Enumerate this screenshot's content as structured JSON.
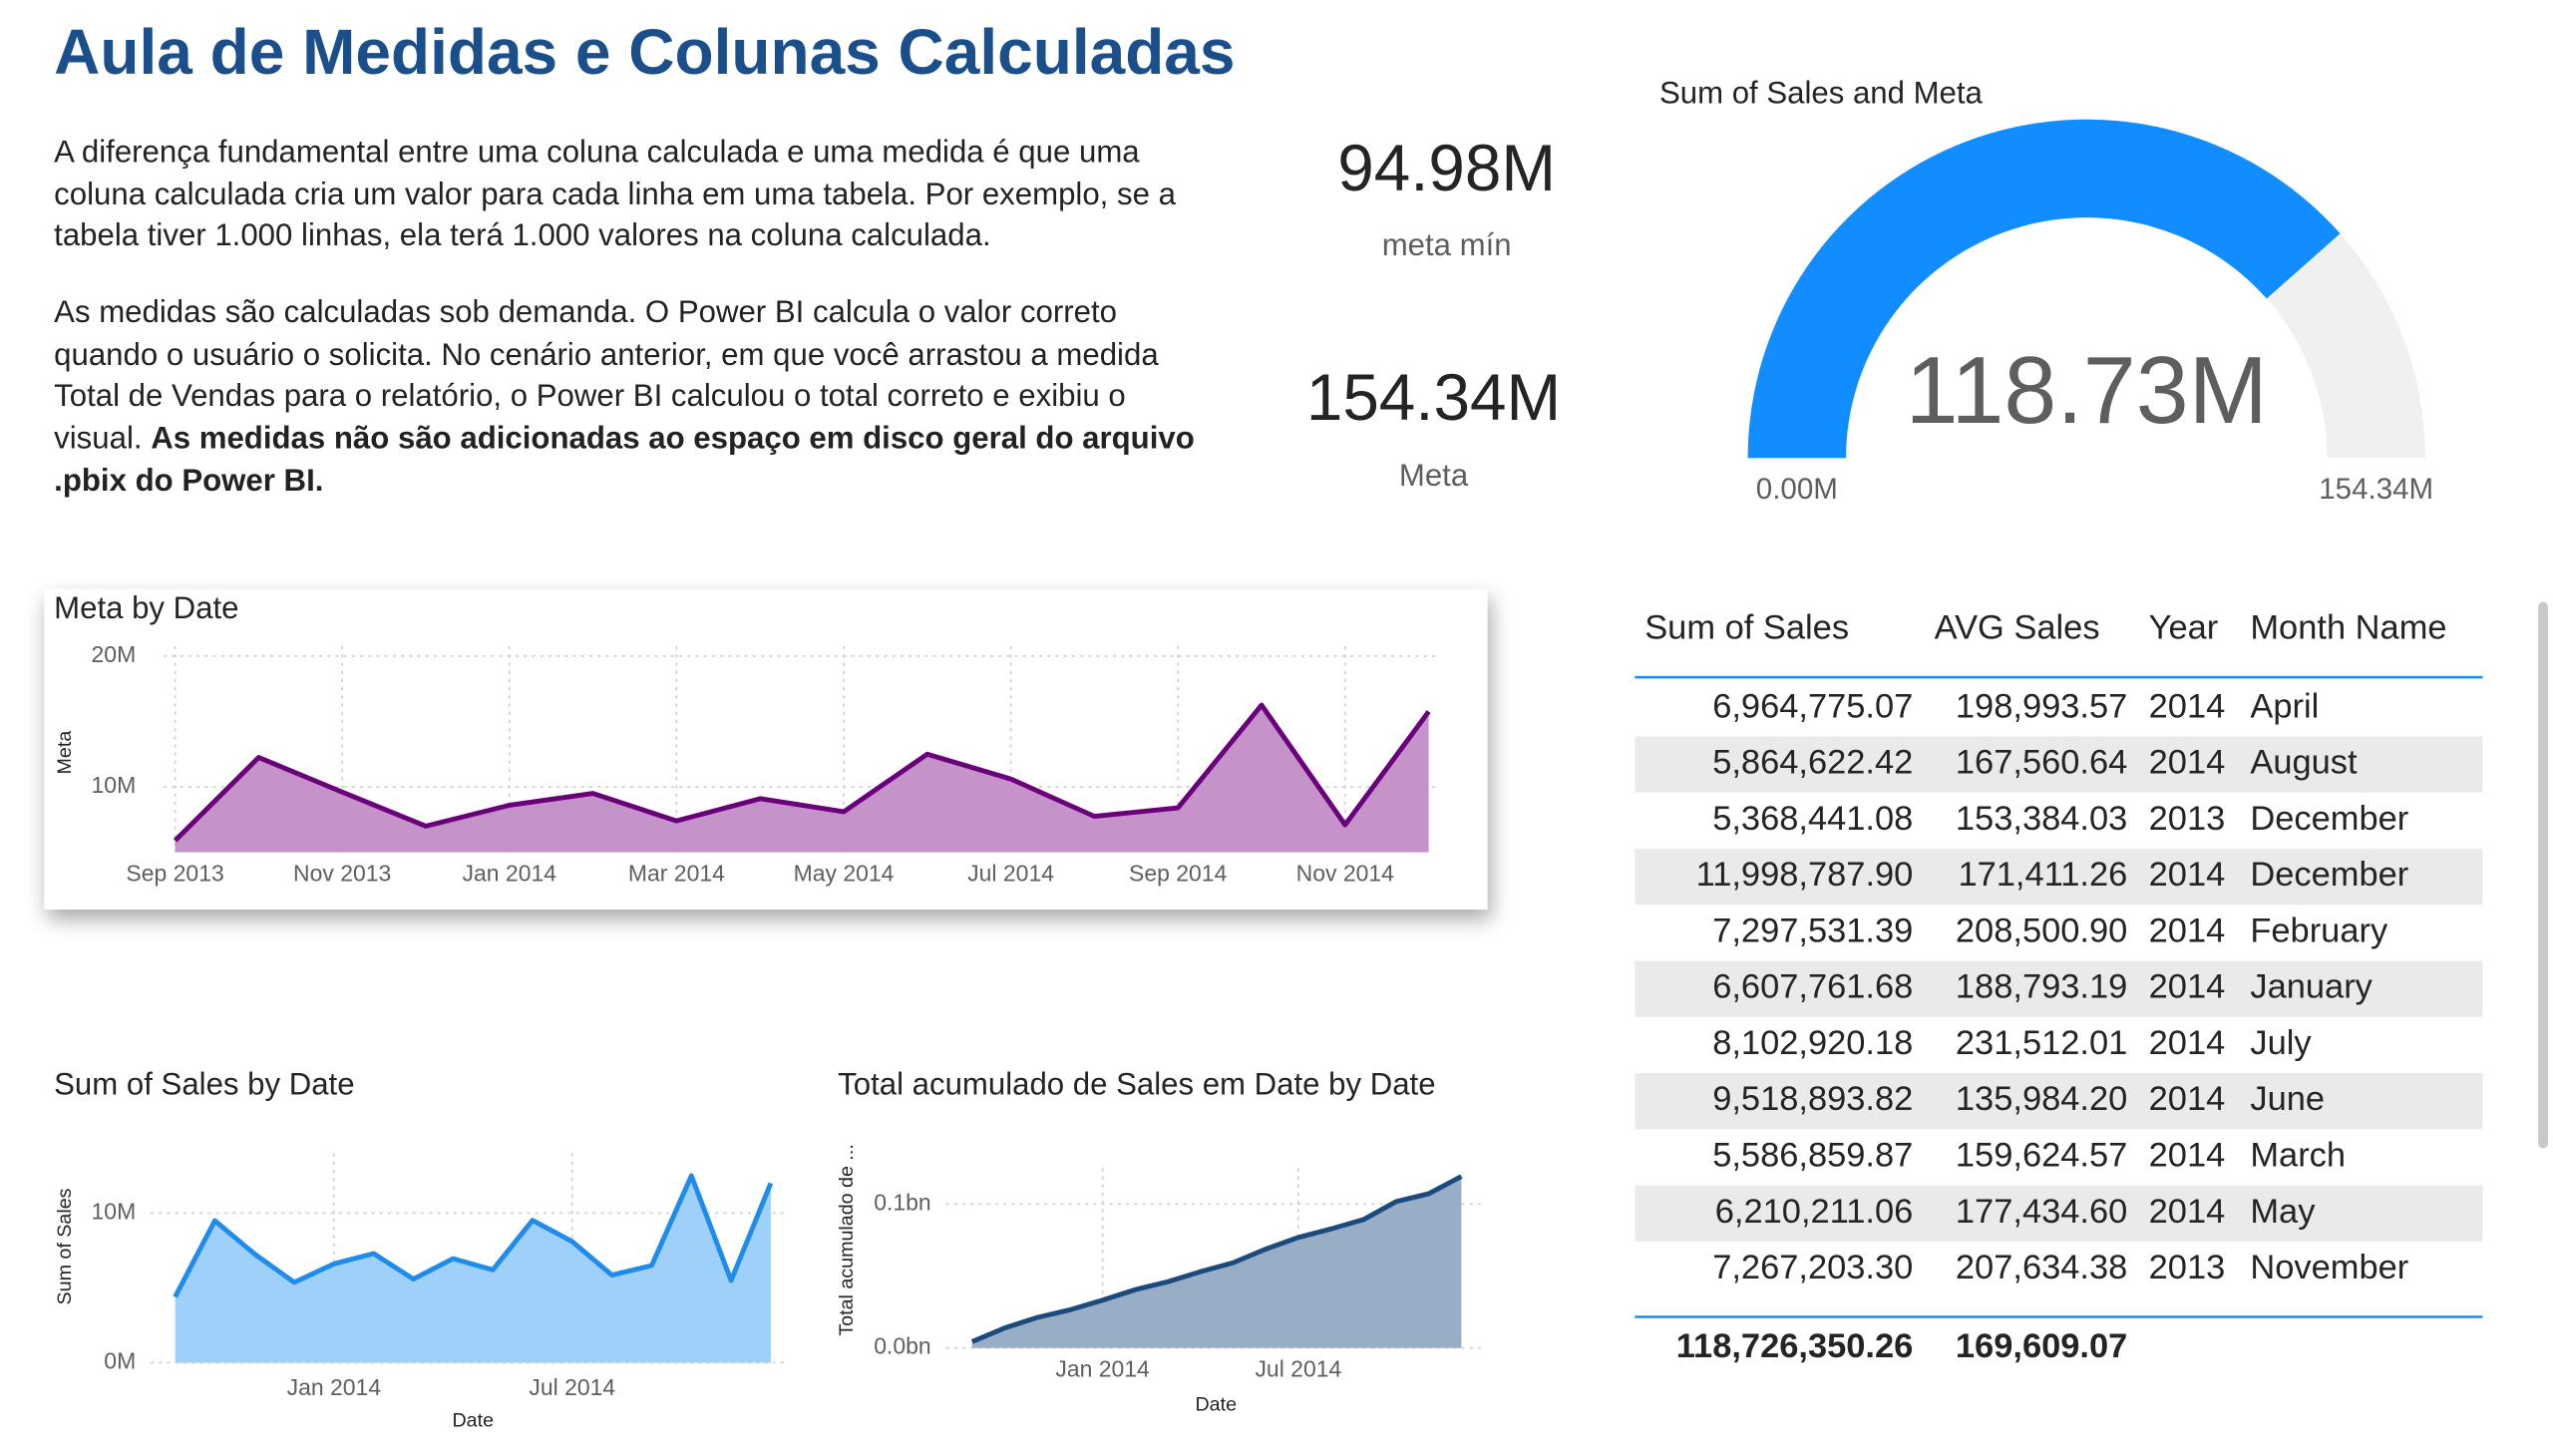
{
  "header": {
    "title": "Aula de Medidas e Colunas Calculadas",
    "paragraph_1": "A diferença fundamental entre uma coluna calculada e uma medida é que uma coluna calculada cria um valor para cada linha em uma tabela. Por exemplo, se a tabela tiver 1.000 linhas, ela terá 1.000 valores na coluna calculada.",
    "paragraph_2": "As medidas são calculadas sob demanda. O Power BI calcula o valor correto quando o usuário o solicita. No cenário anterior, em que você arrastou a medida Total de Vendas para o relatório, o Power BI calculou o total correto e exibiu o visual.",
    "paragraph_2_bold": "As medidas não são adicionadas ao espaço em disco geral do arquivo .pbix do Power BI."
  },
  "cards": [
    {
      "value": 94980000,
      "value_label": "94.98M",
      "label": "meta mín"
    },
    {
      "value": 154340000,
      "value_label": "154.34M",
      "label": "Meta"
    }
  ],
  "chart_data": [
    {
      "type": "gauge",
      "title": "Sum of Sales and Meta",
      "value": 118730000,
      "value_label": "118.73M",
      "min": {
        "value": 0,
        "label": "0.00M"
      },
      "max": {
        "value": 154340000,
        "label": "154.34M"
      },
      "color": "#118dff",
      "track_color": "#f0f0f0"
    },
    {
      "type": "area",
      "title": "Meta by Date",
      "y_label": "Meta",
      "x": [
        "2013-09",
        "2013-10",
        "2013-11",
        "2013-12",
        "2014-01",
        "2014-02",
        "2014-03",
        "2014-04",
        "2014-05",
        "2014-06",
        "2014-07",
        "2014-08",
        "2014-09",
        "2014-10",
        "2014-11",
        "2014-12"
      ],
      "values": [
        5.9,
        12.25,
        9.6,
        7.0,
        8.6,
        9.5,
        7.4,
        9.1,
        8.1,
        12.5,
        10.6,
        7.75,
        8.4,
        16.25,
        7.1,
        15.75
      ],
      "xlim": [
        "2013-09",
        "2014-12"
      ],
      "xticks": [
        {
          "value": "2013-09",
          "label": "Sep 2013"
        },
        {
          "value": "2013-11",
          "label": "Nov 2013"
        },
        {
          "value": "2014-01",
          "label": "Jan 2014"
        },
        {
          "value": "2014-03",
          "label": "Mar 2014"
        },
        {
          "value": "2014-05",
          "label": "May 2014"
        },
        {
          "value": "2014-07",
          "label": "Jul 2014"
        },
        {
          "value": "2014-09",
          "label": "Sep 2014"
        },
        {
          "value": "2014-11",
          "label": "Nov 2014"
        }
      ],
      "ylim": [
        5,
        20.75
      ],
      "yticks": [
        {
          "value": 10,
          "label": "10M"
        },
        {
          "value": 20,
          "label": "20M"
        }
      ],
      "color": "#6b007b",
      "fill": "#c593c9",
      "grid": true
    },
    {
      "type": "area",
      "title": "Sum of Sales by Date",
      "x_label": "Date",
      "y_label": "Sum of Sales",
      "x": [
        "2013-09",
        "2013-10",
        "2013-11",
        "2013-12",
        "2014-01",
        "2014-02",
        "2014-03",
        "2014-04",
        "2014-05",
        "2014-06",
        "2014-07",
        "2014-08",
        "2014-09",
        "2014-10",
        "2014-11",
        "2014-12"
      ],
      "values": [
        4.4,
        9.5,
        7.27,
        5.37,
        6.61,
        7.3,
        5.59,
        6.96,
        6.21,
        9.52,
        8.1,
        5.86,
        6.5,
        12.5,
        5.5,
        12.0
      ],
      "xlim": [
        "2013-09",
        "2014-12"
      ],
      "xticks": [
        {
          "value": "2014-01",
          "label": "Jan 2014"
        },
        {
          "value": "2014-07",
          "label": "Jul 2014"
        }
      ],
      "ylim": [
        0,
        14
      ],
      "yticks": [
        {
          "value": 0,
          "label": "0M"
        },
        {
          "value": 10,
          "label": "10M"
        }
      ],
      "color": "#1f8ceb",
      "fill": "#9fd0fa",
      "grid": true
    },
    {
      "type": "area",
      "title": "Total acumulado de Sales em Date by Date",
      "x_label": "Date",
      "y_label": "Total acumulado de ...",
      "x": [
        "2013-09",
        "2013-10",
        "2013-11",
        "2013-12",
        "2014-01",
        "2014-02",
        "2014-03",
        "2014-04",
        "2014-05",
        "2014-06",
        "2014-07",
        "2014-08",
        "2014-09",
        "2014-10",
        "2014-11",
        "2014-12"
      ],
      "values": [
        0.0044,
        0.0139,
        0.0212,
        0.0265,
        0.0332,
        0.0405,
        0.046,
        0.053,
        0.0592,
        0.0687,
        0.0768,
        0.0827,
        0.0892,
        0.1017,
        0.1072,
        0.1192
      ],
      "xlim": [
        "2013-09",
        "2014-12"
      ],
      "xticks": [
        {
          "value": "2014-01",
          "label": "Jan 2014"
        },
        {
          "value": "2014-07",
          "label": "Jul 2014"
        }
      ],
      "ylim": [
        0,
        0.125
      ],
      "yticks": [
        {
          "value": 0,
          "label": "0.0bn"
        },
        {
          "value": 0.1,
          "label": "0.1bn"
        }
      ],
      "color": "#1b4a7c",
      "fill": "#98aec6",
      "grid": true
    }
  ],
  "table": {
    "columns": [
      "Sum of Sales",
      "AVG Sales",
      "Year",
      "Month Name"
    ],
    "rows": [
      [
        "6,964,775.07",
        "198,993.57",
        "2014",
        "April"
      ],
      [
        "5,864,622.42",
        "167,560.64",
        "2014",
        "August"
      ],
      [
        "5,368,441.08",
        "153,384.03",
        "2013",
        "December"
      ],
      [
        "11,998,787.90",
        "171,411.26",
        "2014",
        "December"
      ],
      [
        "7,297,531.39",
        "208,500.90",
        "2014",
        "February"
      ],
      [
        "6,607,761.68",
        "188,793.19",
        "2014",
        "January"
      ],
      [
        "8,102,920.18",
        "231,512.01",
        "2014",
        "July"
      ],
      [
        "9,518,893.82",
        "135,984.20",
        "2014",
        "June"
      ],
      [
        "5,586,859.87",
        "159,624.57",
        "2014",
        "March"
      ],
      [
        "6,210,211.06",
        "177,434.60",
        "2014",
        "May"
      ],
      [
        "7,267,203.30",
        "207,634.38",
        "2013",
        "November"
      ]
    ],
    "total": [
      "118,726,350.26",
      "169,609.07"
    ]
  }
}
